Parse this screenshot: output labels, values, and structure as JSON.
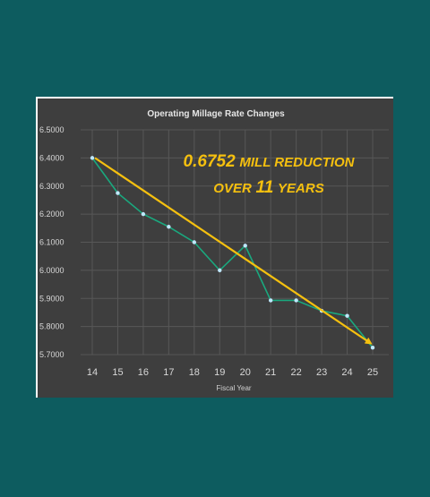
{
  "chart_data": {
    "type": "line",
    "title": "Operating Millage Rate Changes",
    "xlabel": "Fiscal Year",
    "ylabel": "",
    "categories": [
      "14",
      "15",
      "16",
      "17",
      "18",
      "19",
      "20",
      "21",
      "22",
      "23",
      "24",
      "25"
    ],
    "series": [
      {
        "values": [
          6.4,
          6.275,
          6.2,
          6.155,
          6.1,
          6.0,
          6.088,
          5.893,
          5.893,
          5.856,
          5.838,
          5.7248
        ]
      }
    ],
    "trend": {
      "from": 6.4,
      "to": 5.74
    },
    "annotation": {
      "line1_number": "0.6752",
      "line1_text": "MILL REDUCTION",
      "line2_pre": "OVER",
      "line2_number": "11",
      "line2_post": "YEARS"
    },
    "ylim": [
      5.7,
      6.5
    ],
    "yticks": [
      "6.5000",
      "6.4000",
      "6.3000",
      "6.2000",
      "6.1000",
      "6.0000",
      "5.9000",
      "5.8000",
      "5.7000"
    ],
    "grid": true,
    "colors": {
      "series": "#1aa87e",
      "marker": "#bfe8ff",
      "trend": "#f5c00f",
      "background": "#3e3e3e",
      "page": "#0d5c5f"
    }
  }
}
